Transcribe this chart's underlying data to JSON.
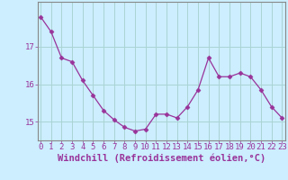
{
  "x": [
    0,
    1,
    2,
    3,
    4,
    5,
    6,
    7,
    8,
    9,
    10,
    11,
    12,
    13,
    14,
    15,
    16,
    17,
    18,
    19,
    20,
    21,
    22,
    23
  ],
  "y": [
    17.8,
    17.4,
    16.7,
    16.6,
    16.1,
    15.7,
    15.3,
    15.05,
    14.85,
    14.75,
    14.8,
    15.2,
    15.2,
    15.1,
    15.4,
    15.85,
    16.7,
    16.2,
    16.2,
    16.3,
    16.2,
    15.85,
    15.4,
    15.1
  ],
  "line_color": "#993399",
  "marker": "D",
  "marker_size": 2.5,
  "bg_color": "#cceeff",
  "grid_color": "#aad4d4",
  "axis_color": "#993399",
  "spine_color": "#888888",
  "xlabel": "Windchill (Refroidissement éolien,°C)",
  "xlabel_fontsize": 7.5,
  "tick_fontsize": 6.5,
  "ylim": [
    14.5,
    18.2
  ],
  "yticks": [
    15,
    16,
    17
  ],
  "xticks": [
    0,
    1,
    2,
    3,
    4,
    5,
    6,
    7,
    8,
    9,
    10,
    11,
    12,
    13,
    14,
    15,
    16,
    17,
    18,
    19,
    20,
    21,
    22,
    23
  ]
}
